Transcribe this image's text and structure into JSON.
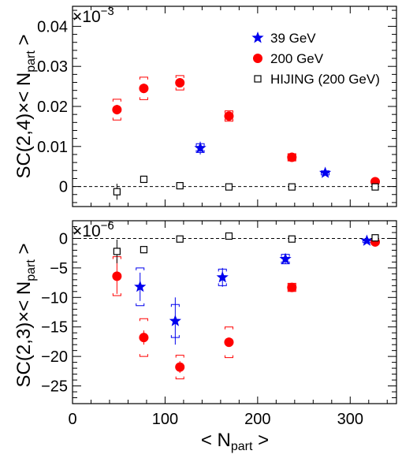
{
  "figure": {
    "xlabel": {
      "pre": "< N",
      "sub": "part",
      "post": " >"
    },
    "colors": {
      "s39": "#0000ee",
      "s200": "#ff0000",
      "hijing": "#000000",
      "axis": "#000000"
    }
  },
  "chart_data": [
    {
      "type": "scatter",
      "panel": "top",
      "ylabel": {
        "pre": "SC(2,4)×< N",
        "sub": "part",
        "post": " >"
      },
      "multiplier": {
        "base": "×10",
        "exp": "−3"
      },
      "xlim": [
        0,
        350
      ],
      "ylim": [
        -0.005,
        0.045
      ],
      "x_ticks": [
        0,
        100,
        200,
        300
      ],
      "y_ticks": [
        0,
        0.01,
        0.02,
        0.03,
        0.04
      ],
      "y_tick_labels": [
        "0",
        "0.01",
        "0.02",
        "0.03",
        "0.04"
      ],
      "zero_line": true,
      "legend": {
        "position": "top-right",
        "entries": [
          {
            "label": "39 GeV",
            "series": "39 GeV"
          },
          {
            "label": "200 GeV",
            "series": "200 GeV"
          },
          {
            "label": "HIJING (200 GeV)",
            "series": "HIJING (200 GeV)"
          }
        ]
      },
      "series": [
        {
          "name": "39 GeV",
          "marker": "star",
          "color": "#0000ee",
          "points": [
            {
              "x": 138,
              "y": 0.0096,
              "err": 0.0016,
              "sys": 0.0011
            },
            {
              "x": 273,
              "y": 0.0034,
              "err": 0.0004,
              "sys": 0.0005
            }
          ]
        },
        {
          "name": "200 GeV",
          "marker": "circle",
          "color": "#ff0000",
          "points": [
            {
              "x": 48,
              "y": 0.0192,
              "err": 0.0012,
              "sys": 0.0026
            },
            {
              "x": 77,
              "y": 0.0245,
              "err": 0.0012,
              "sys": 0.0028
            },
            {
              "x": 116,
              "y": 0.0259,
              "err": 0.001,
              "sys": 0.0018
            },
            {
              "x": 169,
              "y": 0.0176,
              "err": 0.0008,
              "sys": 0.0013
            },
            {
              "x": 237,
              "y": 0.0073,
              "err": 0.0006,
              "sys": 0.0009
            },
            {
              "x": 327,
              "y": 0.0012,
              "err": 0.0004,
              "sys": 0.0004
            }
          ]
        },
        {
          "name": "HIJING (200 GeV)",
          "marker": "open-square",
          "color": "#000000",
          "points": [
            {
              "x": 48,
              "y": -0.0013,
              "err": 0.002
            },
            {
              "x": 77,
              "y": 0.0018,
              "err": 0.0007
            },
            {
              "x": 116,
              "y": 0.0002,
              "err": 0.0004
            },
            {
              "x": 169,
              "y": -0.0001,
              "err": 0.0003
            },
            {
              "x": 237,
              "y": -0.0001,
              "err": 0.0002
            },
            {
              "x": 327,
              "y": -0.0001,
              "err": 0.0001
            }
          ]
        }
      ]
    },
    {
      "type": "scatter",
      "panel": "bottom",
      "ylabel": {
        "pre": "SC(2,3)×< N",
        "sub": "part",
        "post": " >"
      },
      "multiplier": {
        "base": "×10",
        "exp": "−6"
      },
      "xlim": [
        0,
        350
      ],
      "ylim": [
        -28,
        3
      ],
      "x_ticks": [
        0,
        100,
        200,
        300
      ],
      "x_tick_labels": [
        "0",
        "100",
        "200",
        "300"
      ],
      "y_ticks": [
        0,
        -5,
        -10,
        -15,
        -20,
        -25
      ],
      "y_tick_labels": [
        "0",
        "−5",
        "−10",
        "−15",
        "−20",
        "−25"
      ],
      "zero_line": true,
      "series": [
        {
          "name": "39 GeV",
          "marker": "star",
          "color": "#0000ee",
          "points": [
            {
              "x": 73,
              "y": -8.2,
              "err": 2.4,
              "sys": 3.2
            },
            {
              "x": 111,
              "y": -14.0,
              "err": 4.0,
              "sys": 2.8
            },
            {
              "x": 162,
              "y": -6.6,
              "err": 1.6,
              "sys": 1.4
            },
            {
              "x": 230,
              "y": -3.5,
              "err": 0.8,
              "sys": 0.8
            },
            {
              "x": 318,
              "y": -0.4,
              "err": 0.4,
              "sys": 0.3
            }
          ]
        },
        {
          "name": "200 GeV",
          "marker": "circle",
          "color": "#ff0000",
          "points": [
            {
              "x": 48,
              "y": -6.4,
              "err": 3.0,
              "sys": 3.3
            },
            {
              "x": 77,
              "y": -16.8,
              "err": 1.2,
              "sys": 3.2
            },
            {
              "x": 116,
              "y": -21.8,
              "err": 1.0,
              "sys": 2.0
            },
            {
              "x": 169,
              "y": -17.6,
              "err": 0.8,
              "sys": 2.6
            },
            {
              "x": 237,
              "y": -8.3,
              "err": 0.5,
              "sys": 0.7
            },
            {
              "x": 327,
              "y": -0.6,
              "err": 0.3,
              "sys": 0.2
            }
          ]
        },
        {
          "name": "HIJING (200 GeV)",
          "marker": "open-square",
          "color": "#000000",
          "points": [
            {
              "x": 48,
              "y": -2.2,
              "err": 2.0
            },
            {
              "x": 77,
              "y": -1.9,
              "err": 0.6
            },
            {
              "x": 116,
              "y": -0.1,
              "err": 0.4
            },
            {
              "x": 169,
              "y": 0.4,
              "err": 0.3
            },
            {
              "x": 237,
              "y": -0.1,
              "err": 0.2
            },
            {
              "x": 327,
              "y": 0.1,
              "err": 0.1
            }
          ]
        }
      ]
    }
  ]
}
